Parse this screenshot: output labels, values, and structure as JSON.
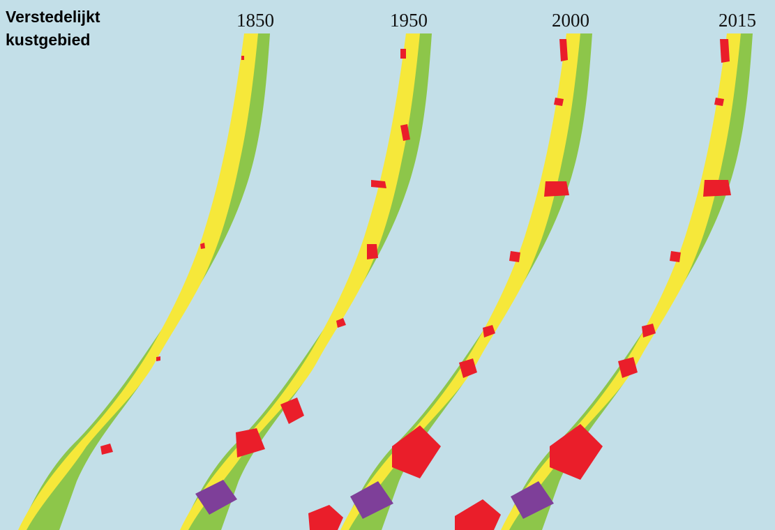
{
  "title": {
    "line1": "Verstedelijkt",
    "line2": "kustgebied"
  },
  "panels": [
    {
      "year": "1850"
    },
    {
      "year": "1950"
    },
    {
      "year": "2000"
    },
    {
      "year": "2015"
    }
  ],
  "colors": {
    "sea": "#c3dfe8",
    "dune_green": "#8dc64a",
    "sand_yellow": "#f6e83a",
    "urban_red": "#ea1e2a",
    "industrial_purple": "#7e3f99"
  }
}
